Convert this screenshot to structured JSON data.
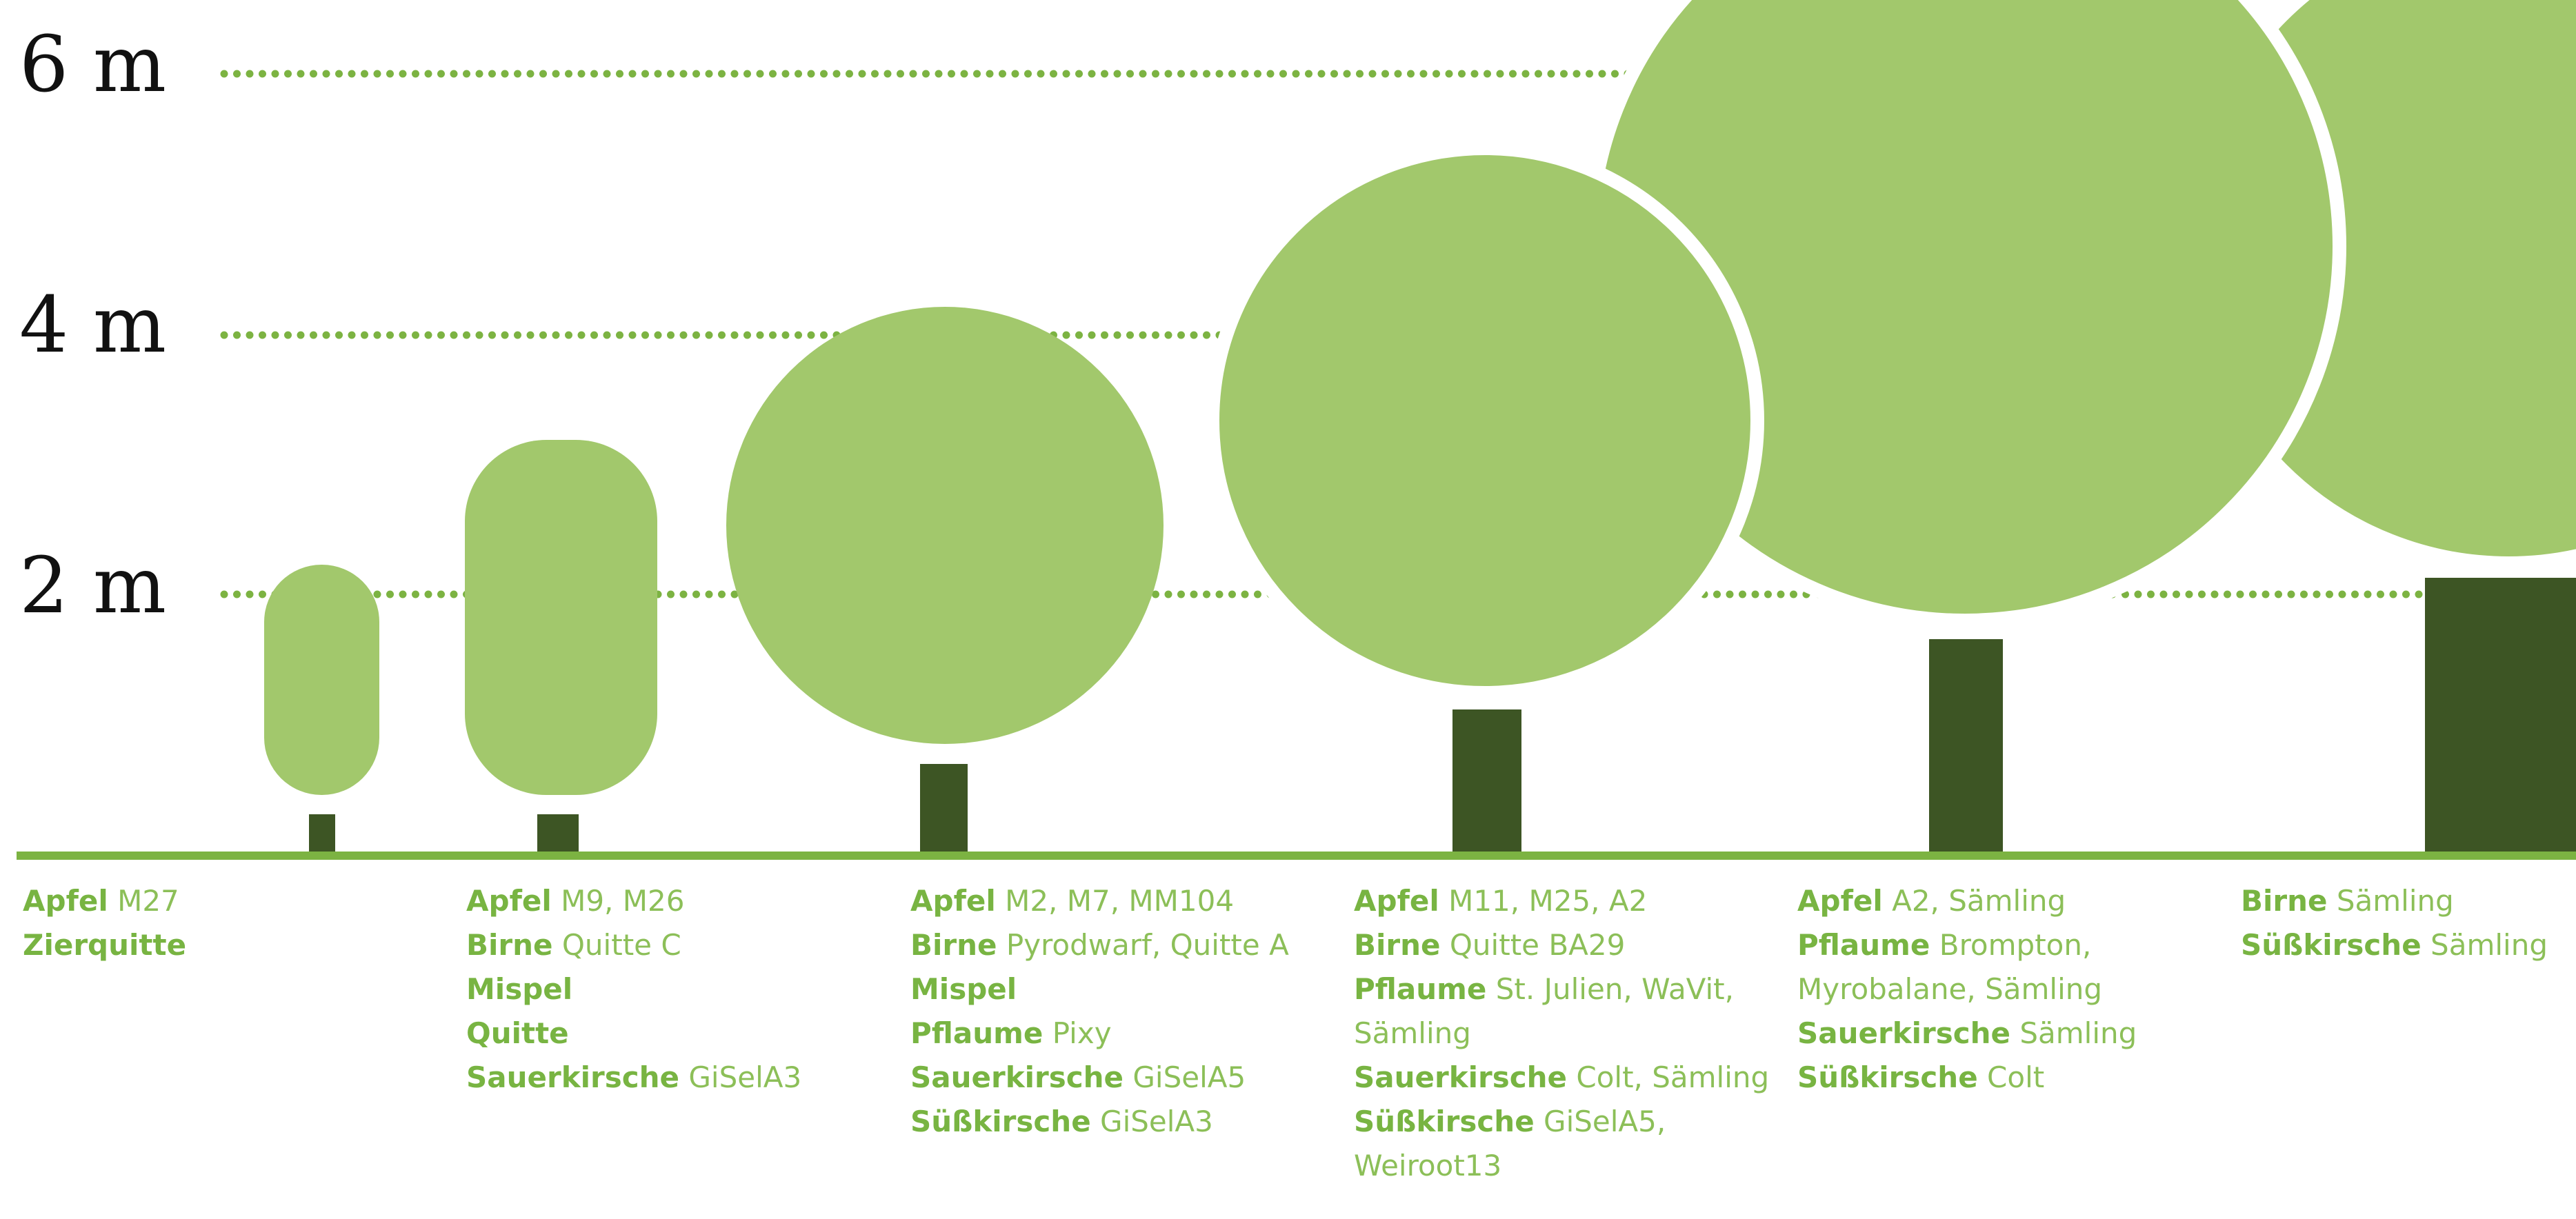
{
  "height_labels": [
    "6 m",
    "4 m",
    "2 m"
  ],
  "columns": [
    {
      "entries": [
        {
          "fruit": "Apfel",
          "rootstock": "M27"
        },
        {
          "fruit": "Zierquitte"
        }
      ]
    },
    {
      "entries": [
        {
          "fruit": "Apfel",
          "rootstock": "M9, M26"
        },
        {
          "fruit": "Birne",
          "rootstock": "Quitte C"
        },
        {
          "fruit": "Mispel"
        },
        {
          "fruit": "Quitte"
        },
        {
          "fruit": "Sauerkirsche",
          "rootstock": "GiSelA3"
        }
      ]
    },
    {
      "entries": [
        {
          "fruit": "Apfel",
          "rootstock": "M2, M7, MM104"
        },
        {
          "fruit": "Birne",
          "rootstock": "Pyrodwarf, Quitte A"
        },
        {
          "fruit": "Mispel"
        },
        {
          "fruit": "Pflaume",
          "rootstock": "Pixy"
        },
        {
          "fruit": "Sauerkirsche",
          "rootstock": "GiSelA5"
        },
        {
          "fruit": "Süßkirsche",
          "rootstock": "GiSelA3"
        }
      ]
    },
    {
      "entries": [
        {
          "fruit": "Apfel",
          "rootstock": "M11, M25, A2"
        },
        {
          "fruit": "Birne",
          "rootstock": "Quitte BA29"
        },
        {
          "fruit": "Pflaume",
          "rootstock": "St. Julien, WaVit, Sämling"
        },
        {
          "fruit": "Sauerkirsche",
          "rootstock": "Colt, Sämling"
        },
        {
          "fruit": "Süßkirsche",
          "rootstock": "GiSelA5, Weiroot13"
        }
      ]
    },
    {
      "entries": [
        {
          "fruit": "Apfel",
          "rootstock": "A2, Sämling"
        },
        {
          "fruit": "Pflaume",
          "rootstock": "Brompton, Myrobalane, Sämling"
        },
        {
          "fruit": "Sauerkirsche",
          "rootstock": "Sämling"
        },
        {
          "fruit": "Süßkirsche",
          "rootstock": "Colt"
        }
      ]
    },
    {
      "entries": [
        {
          "fruit": "Birne",
          "rootstock": "Sämling"
        },
        {
          "fruit": "Süßkirsche",
          "rootstock": "Sämling"
        }
      ]
    }
  ]
}
